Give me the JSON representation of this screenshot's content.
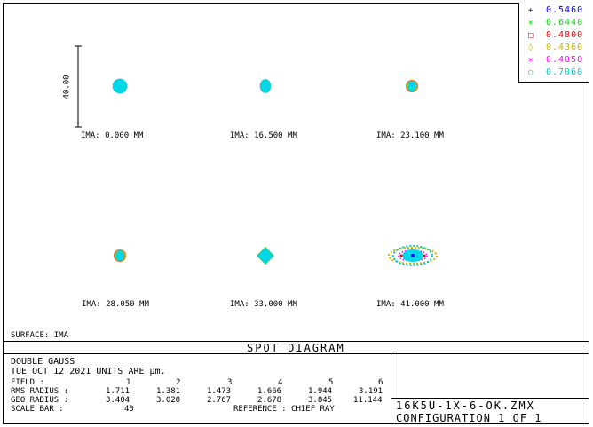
{
  "legend": [
    {
      "value": "0.5460",
      "color": "#0000ff",
      "marker": "+"
    },
    {
      "value": "0.6440",
      "color": "#00dd00",
      "marker": "×"
    },
    {
      "value": "0.4800",
      "color": "#ff0000",
      "marker": "□"
    },
    {
      "value": "0.4360",
      "color": "#d0b000",
      "marker": "◊"
    },
    {
      "value": "0.4050",
      "color": "#ff00ff",
      "marker": "×"
    },
    {
      "value": "0.7060",
      "color": "#00c8c8",
      "marker": "○"
    }
  ],
  "scale_bar": {
    "label": "40.00"
  },
  "spots": [
    {
      "label": "IMA: 0.000 MM",
      "shape": "round"
    },
    {
      "label": "IMA: 16.500 MM",
      "shape": "oval"
    },
    {
      "label": "IMA: 23.100 MM",
      "shape": "rim"
    },
    {
      "label": "IMA: 28.050 MM",
      "shape": "rim"
    },
    {
      "label": "IMA: 33.000 MM",
      "shape": "diamond"
    },
    {
      "label": "IMA: 41.000 MM",
      "shape": "flare"
    }
  ],
  "surface_label": "SURFACE: IMA",
  "diagram_title": "SPOT DIAGRAM",
  "info": {
    "lens_name": "DOUBLE GAUSS",
    "date_units": "TUE OCT 12 2021   UNITS ARE µm.",
    "field_label": "FIELD       :",
    "fields": [
      "1",
      "2",
      "3",
      "4",
      "5",
      "6"
    ],
    "rms_label": "RMS RADIUS :",
    "rms": [
      "1.711",
      "1.381",
      "1.473",
      "1.666",
      "1.944",
      "3.191"
    ],
    "geo_label": "GEO RADIUS :",
    "geo": [
      "3.404",
      "3.028",
      "2.767",
      "2.678",
      "3.845",
      "11.144"
    ],
    "scale_label": "SCALE BAR   :",
    "scale_value": "40",
    "reference": "REFERENCE   : CHIEF RAY"
  },
  "file_name": "16K5U-1X-6-OK.ZMX",
  "configuration": "CONFIGURATION  1  OF  1"
}
